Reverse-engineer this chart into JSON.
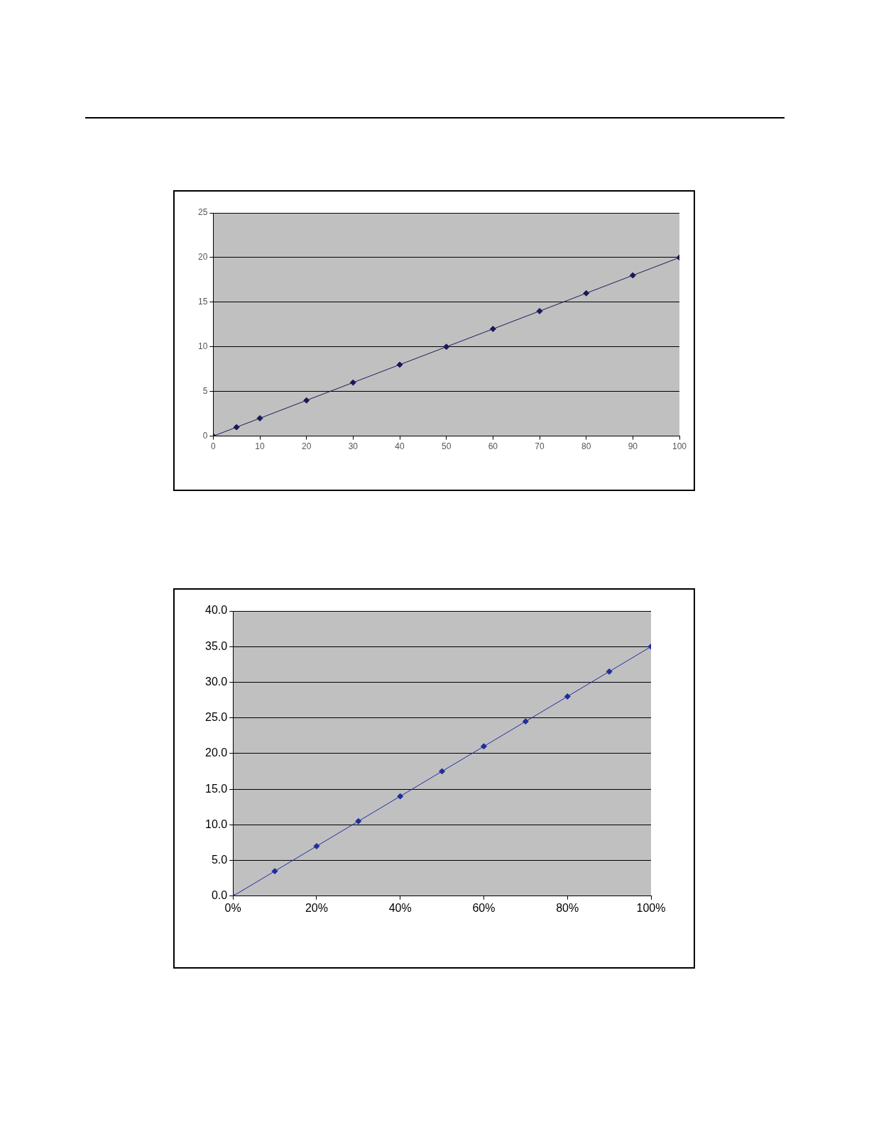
{
  "chart_data": [
    {
      "type": "line",
      "x": [
        0,
        5,
        10,
        20,
        30,
        40,
        50,
        60,
        70,
        80,
        90,
        100
      ],
      "series": [
        {
          "color": "#1a1a5a",
          "values": [
            0,
            1,
            2,
            4,
            6,
            8,
            10,
            12,
            14,
            16,
            18,
            20
          ]
        }
      ],
      "xlim": [
        0,
        100
      ],
      "xticks": [
        0,
        10,
        20,
        30,
        40,
        50,
        60,
        70,
        80,
        90,
        100
      ],
      "ylim": [
        0,
        25
      ],
      "yticks": [
        0,
        5,
        10,
        15,
        20,
        25
      ],
      "grid": "y",
      "marker": "diamond",
      "line_style": "solid"
    },
    {
      "type": "line",
      "x": [
        0,
        10,
        20,
        30,
        40,
        50,
        60,
        70,
        80,
        90,
        100
      ],
      "series": [
        {
          "color": "#1f2d9e",
          "values": [
            0,
            3.5,
            7,
            10.5,
            14,
            17.5,
            21,
            24.5,
            28,
            31.5,
            35
          ]
        }
      ],
      "xlim": [
        0,
        100
      ],
      "xticks": [
        {
          "value": 0,
          "label": "0%"
        },
        {
          "value": 20,
          "label": "20%"
        },
        {
          "value": 40,
          "label": "40%"
        },
        {
          "value": 60,
          "label": "60%"
        },
        {
          "value": 80,
          "label": "80%"
        },
        {
          "value": 100,
          "label": "100%"
        }
      ],
      "ylim": [
        0,
        40
      ],
      "yticks": [
        {
          "value": 0,
          "label": "0.0"
        },
        {
          "value": 5,
          "label": "5.0"
        },
        {
          "value": 10,
          "label": "10.0"
        },
        {
          "value": 15,
          "label": "15.0"
        },
        {
          "value": 20,
          "label": "20.0"
        },
        {
          "value": 25,
          "label": "25.0"
        },
        {
          "value": 30,
          "label": "30.0"
        },
        {
          "value": 35,
          "label": "35.0"
        },
        {
          "value": 40,
          "label": "40.0"
        }
      ],
      "grid": "y",
      "marker": "diamond",
      "line_style": "solid"
    }
  ]
}
